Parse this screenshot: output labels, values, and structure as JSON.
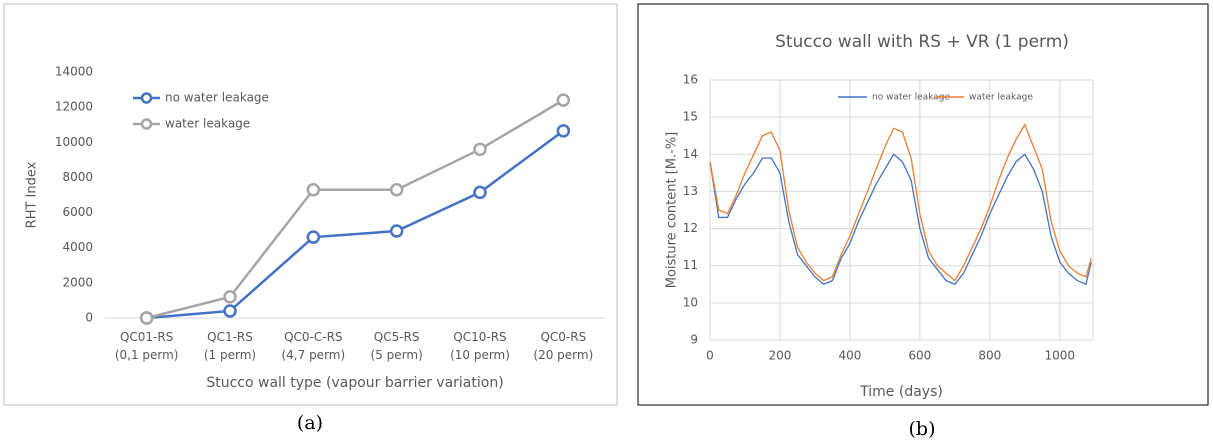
{
  "chart_data": [
    {
      "type": "line",
      "xlabel": "Stucco wall type (vapour barrier variation)",
      "ylabel": "RHT Index",
      "categories": [
        "QC01-RS\n(0,1 perm)",
        "QC1-RS\n(1 perm)",
        "QC0-C-RS\n(4,7 perm)",
        "QC5-RS\n(5 perm)",
        "QC10-RS\n(10 perm)",
        "QC0-RS\n(20 perm)"
      ],
      "series": [
        {
          "name": "no water leakage",
          "color": "#4472c4",
          "values": [
            0,
            400,
            4600,
            4950,
            7150,
            10650
          ]
        },
        {
          "name": "water leakage",
          "color": "#a5a5a5",
          "values": [
            0,
            1200,
            7300,
            7300,
            9600,
            12400
          ]
        }
      ],
      "ylim": [
        0,
        14000
      ],
      "yticks": [
        0,
        2000,
        4000,
        6000,
        8000,
        10000,
        12000,
        14000
      ],
      "grid": false,
      "markers": true,
      "legend": "upper left",
      "caption": "(a)"
    },
    {
      "type": "line",
      "title": "Stucco wall with RS + VR (1 perm)",
      "xlabel": "Time (days)",
      "ylabel": "Moisture content [M.-%]",
      "x": [
        0,
        25,
        50,
        75,
        100,
        125,
        150,
        175,
        200,
        225,
        250,
        275,
        300,
        325,
        350,
        375,
        400,
        425,
        450,
        475,
        500,
        525,
        550,
        575,
        600,
        625,
        650,
        675,
        700,
        725,
        750,
        775,
        800,
        825,
        850,
        875,
        900,
        925,
        950,
        975,
        1000,
        1025,
        1050,
        1075,
        1090
      ],
      "series": [
        {
          "name": "no water leakage",
          "color": "#4472c4",
          "values": [
            13.8,
            12.3,
            12.3,
            12.8,
            13.2,
            13.5,
            13.9,
            13.9,
            13.5,
            12.2,
            11.3,
            11.0,
            10.7,
            10.5,
            10.6,
            11.2,
            11.6,
            12.2,
            12.7,
            13.2,
            13.6,
            14.0,
            13.8,
            13.3,
            12.0,
            11.2,
            10.9,
            10.6,
            10.5,
            10.8,
            11.3,
            11.8,
            12.4,
            12.9,
            13.4,
            13.8,
            14.0,
            13.6,
            13.0,
            11.8,
            11.1,
            10.8,
            10.6,
            10.5,
            11.1
          ]
        },
        {
          "name": "water leakage",
          "color": "#ed7d31",
          "values": [
            13.8,
            12.5,
            12.4,
            12.9,
            13.5,
            14.0,
            14.5,
            14.6,
            14.1,
            12.5,
            11.5,
            11.1,
            10.8,
            10.6,
            10.7,
            11.3,
            11.8,
            12.4,
            13.0,
            13.6,
            14.2,
            14.7,
            14.6,
            13.9,
            12.4,
            11.4,
            11.0,
            10.8,
            10.6,
            11.0,
            11.5,
            12.0,
            12.6,
            13.3,
            13.9,
            14.4,
            14.8,
            14.2,
            13.6,
            12.2,
            11.4,
            11.0,
            10.8,
            10.7,
            11.2
          ]
        }
      ],
      "xlim": [
        0,
        1095
      ],
      "xticks": [
        0,
        200,
        400,
        600,
        800,
        1000
      ],
      "ylim": [
        9,
        16
      ],
      "yticks": [
        9,
        10,
        11,
        12,
        13,
        14,
        15,
        16
      ],
      "grid": true,
      "markers": false,
      "legend": "upper center",
      "caption": "(b)"
    }
  ]
}
